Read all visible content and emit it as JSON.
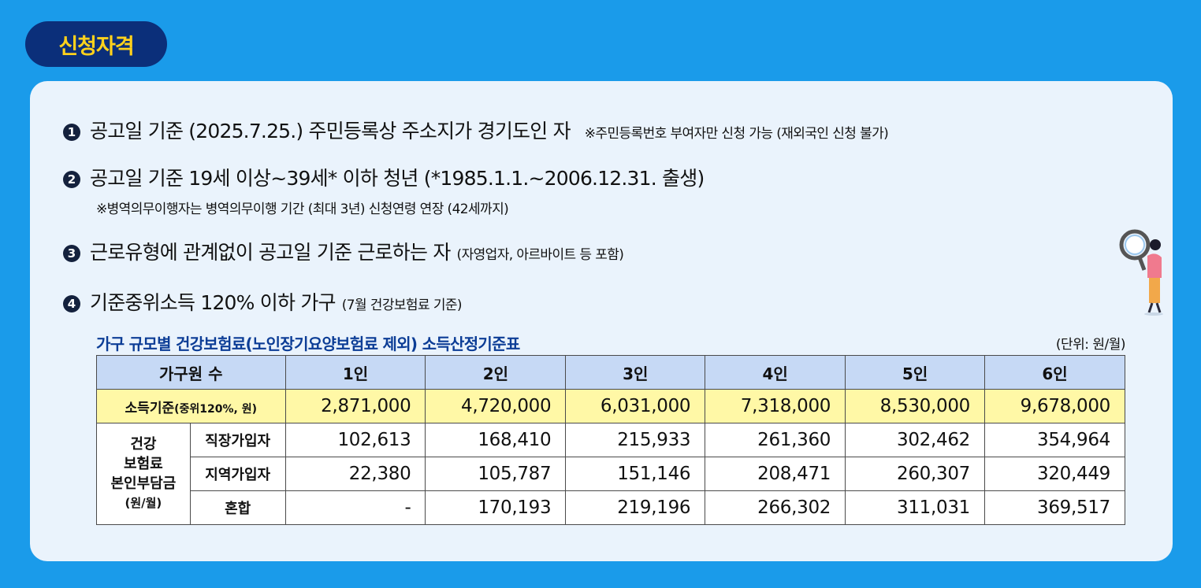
{
  "badge": "신청자격",
  "requirements": [
    {
      "num": "1",
      "main": "공고일 기준 (2025.7.25.) 주민등록상 주소지가 경기도인 자",
      "note": "※주민등록번호 부여자만 신청 가능 (재외국인 신청 불가)"
    },
    {
      "num": "2",
      "main": "공고일 기준 19세 이상~39세* 이하 청년 (*1985.1.1.~2006.12.31. 출생)",
      "note": "※병역의무이행자는 병역의무이행 기간 (최대 3년) 신청연령 연장 (42세까지)"
    },
    {
      "num": "3",
      "main": "근로유형에 관계없이 공고일 기준 근로하는 자",
      "note": "(자영업자, 아르바이트 등 포함)"
    },
    {
      "num": "4",
      "main": "기준중위소득 120% 이하 가구",
      "note": "(7월 건강보험료 기준)"
    }
  ],
  "table": {
    "title": "가구 규모별 건강보험료(노인장기요양보험료 제외) 소득산정기준표",
    "unit": "(단위: 원/월)",
    "header_label": "가구원 수",
    "columns": [
      "1인",
      "2인",
      "3인",
      "4인",
      "5인",
      "6인"
    ],
    "income_label": "소득기준",
    "income_label_small": "(중위120%, 원)",
    "income": [
      "2,871,000",
      "4,720,000",
      "6,031,000",
      "7,318,000",
      "8,530,000",
      "9,678,000"
    ],
    "group_label": [
      "건강",
      "보험료",
      "본인부담금",
      "(원/월)"
    ],
    "rows": [
      {
        "label": "직장가입자",
        "values": [
          "102,613",
          "168,410",
          "215,933",
          "261,360",
          "302,462",
          "354,964"
        ]
      },
      {
        "label": "지역가입자",
        "values": [
          "22,380",
          "105,787",
          "151,146",
          "208,471",
          "260,307",
          "320,449"
        ]
      },
      {
        "label": "혼합",
        "values": [
          "-",
          "170,193",
          "219,196",
          "266,302",
          "311,031",
          "369,517"
        ]
      }
    ]
  },
  "colors": {
    "background": "#1a9bea",
    "badge": "#0b2f7a",
    "badge_text": "#ffd21c",
    "card": "#eaf3fc",
    "header": "#c6d9f5",
    "income_row": "#fff8a6",
    "title": "#0c3d96"
  },
  "illustration": "person-with-magnifier-icon"
}
